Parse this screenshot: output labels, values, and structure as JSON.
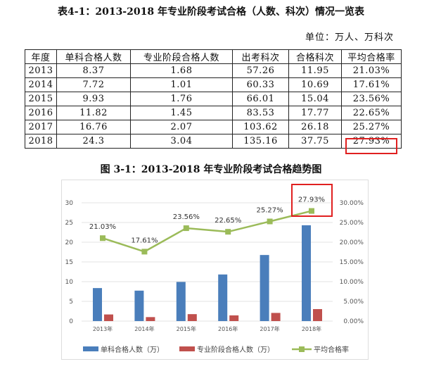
{
  "table_title": "表4-1：2013-2018 年专业阶段考试合格（人数、科次）情况一览表",
  "unit": "单位：万人、万科次",
  "table": {
    "headers": [
      "年度",
      "单科合格人数",
      "专业阶段合格人数",
      "出考科次",
      "合格科次",
      "平均合格率"
    ],
    "rows": [
      [
        "2013",
        "8.37",
        "1.68",
        "57.26",
        "11.95",
        "21.03%"
      ],
      [
        "2014",
        "7.72",
        "1.01",
        "60.33",
        "10.69",
        "17.61%"
      ],
      [
        "2015",
        "9.93",
        "1.76",
        "66.01",
        "15.04",
        "23.56%"
      ],
      [
        "2016",
        "11.82",
        "1.45",
        "83.53",
        "17.77",
        "22.65%"
      ],
      [
        "2017",
        "16.76",
        "2.07",
        "103.62",
        "26.18",
        "25.27%"
      ],
      [
        "2018",
        "24.3",
        "3.04",
        "135.16",
        "37.75",
        "27.93%"
      ]
    ]
  },
  "chart_title": "图 3-1：2013-2018 年专业阶段考试合格趋势图",
  "chart_data": {
    "type": "bar",
    "categories": [
      "2013年",
      "2014年",
      "2015年",
      "2016年",
      "2017年",
      "2018年"
    ],
    "series": [
      {
        "name": "单科合格人数（万）",
        "type": "bar",
        "axis": "left",
        "color": "#4a7ebb",
        "values": [
          8.37,
          7.72,
          9.93,
          11.82,
          16.76,
          24.3
        ]
      },
      {
        "name": "专业阶段合格人数（万）",
        "type": "bar",
        "axis": "left",
        "color": "#c0504d",
        "values": [
          1.68,
          1.01,
          1.76,
          1.45,
          2.07,
          3.04
        ]
      },
      {
        "name": "平均合格率",
        "type": "line",
        "axis": "right",
        "color": "#9bbb59",
        "values": [
          21.03,
          17.61,
          23.56,
          22.65,
          25.27,
          27.93
        ],
        "labels": [
          "21.03%",
          "17.61%",
          "23.56%",
          "22.65%",
          "25.27%",
          "27.93%"
        ]
      }
    ],
    "left_ticks": [
      "0",
      "5",
      "10",
      "15",
      "20",
      "25",
      "30"
    ],
    "right_ticks": [
      "0.00%",
      "5.00%",
      "10.00%",
      "15.00%",
      "20.00%",
      "25.00%",
      "30.00%"
    ],
    "ylim": [
      0,
      30
    ],
    "y2lim": [
      0,
      30
    ],
    "grid": true,
    "legend": "bottom",
    "highlight_color": "#e02020"
  }
}
